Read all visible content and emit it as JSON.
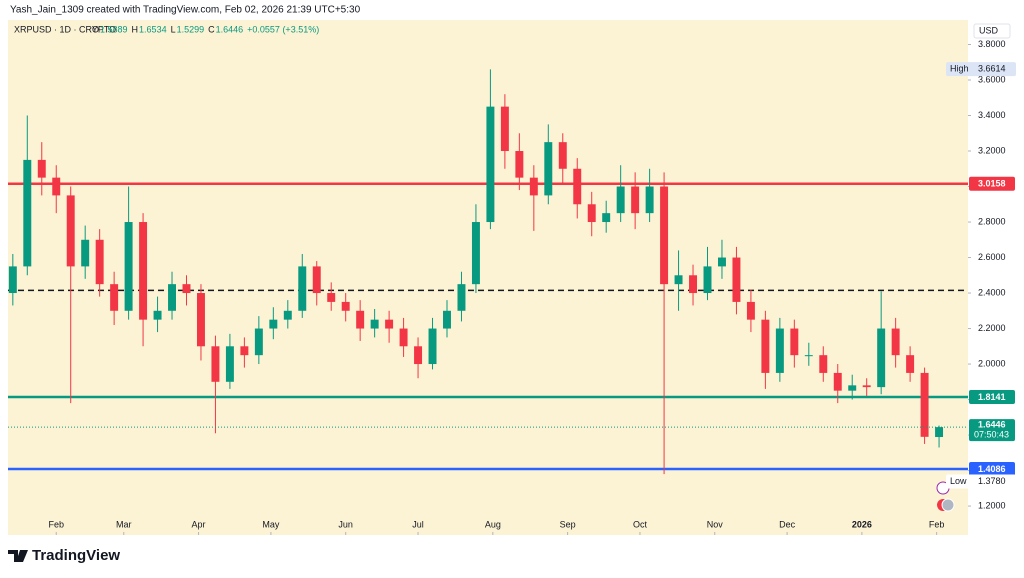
{
  "chart_data": {
    "type": "candlestick",
    "attribution": "Yash_Jain_1309 created with TradingView.com, Feb 02, 2026 21:39 UTC+5:30",
    "symbol": "XRPUSD · 1D · CRYPTO",
    "ohlc_labels": [
      "O",
      "H",
      "L",
      "C"
    ],
    "change": "+0.0557 (+3.51%)",
    "currency": "USD",
    "brand": "TradingView",
    "countdown": "07:50:43",
    "up_color": "#089981",
    "down_color": "#f23645",
    "background": "#fcf3d4",
    "x": [
      -18,
      -12,
      -6,
      0,
      6,
      12,
      18,
      24,
      30,
      36,
      42,
      48,
      54,
      60,
      66,
      72,
      78,
      84,
      90,
      96,
      102,
      108,
      114,
      120,
      126,
      132,
      138,
      144,
      150,
      156,
      162,
      168,
      174,
      180,
      186,
      192,
      198,
      204,
      210,
      216,
      222,
      228,
      234,
      240,
      246,
      252,
      258,
      264,
      270,
      276,
      282,
      288,
      294,
      300,
      306,
      312,
      318,
      324,
      330,
      336,
      342,
      348,
      354,
      360,
      366
    ],
    "open": [
      2.4,
      2.55,
      3.15,
      3.05,
      2.95,
      2.55,
      2.7,
      2.45,
      2.3,
      2.8,
      2.25,
      2.3,
      2.45,
      2.4,
      2.1,
      1.9,
      2.1,
      2.05,
      2.2,
      2.25,
      2.3,
      2.55,
      2.4,
      2.35,
      2.3,
      2.2,
      2.25,
      2.2,
      2.1,
      2.0,
      2.2,
      2.3,
      2.45,
      2.8,
      3.45,
      3.2,
      3.05,
      2.95,
      3.25,
      3.1,
      2.9,
      2.8,
      2.85,
      3.0,
      2.85,
      3.0,
      2.45,
      2.5,
      2.4,
      2.55,
      2.6,
      2.35,
      2.25,
      1.95,
      2.2,
      2.05,
      2.05,
      1.95,
      1.85,
      1.88,
      1.87,
      2.2,
      2.05,
      1.95,
      1.5889
    ],
    "high": [
      2.62,
      3.4,
      3.25,
      3.12,
      3.0,
      2.78,
      2.76,
      2.52,
      3.0,
      2.85,
      2.38,
      2.52,
      2.5,
      2.45,
      2.16,
      2.17,
      2.15,
      2.27,
      2.32,
      2.36,
      2.62,
      2.58,
      2.46,
      2.4,
      2.36,
      2.31,
      2.3,
      2.26,
      2.15,
      2.26,
      2.36,
      2.52,
      2.9,
      3.66,
      3.52,
      3.3,
      3.12,
      3.35,
      3.3,
      3.16,
      2.97,
      2.92,
      3.12,
      3.08,
      3.1,
      3.08,
      2.64,
      2.56,
      2.66,
      2.7,
      2.66,
      2.42,
      2.3,
      2.26,
      2.25,
      2.12,
      2.1,
      2.0,
      1.94,
      1.92,
      2.41,
      2.26,
      2.1,
      1.98,
      1.6534
    ],
    "low": [
      2.33,
      2.5,
      2.95,
      2.85,
      1.78,
      2.48,
      2.38,
      2.22,
      2.25,
      2.1,
      2.18,
      2.25,
      2.33,
      2.02,
      1.61,
      1.86,
      1.98,
      2.0,
      2.14,
      2.2,
      2.26,
      2.33,
      2.3,
      2.24,
      2.13,
      2.15,
      2.12,
      2.04,
      1.92,
      1.97,
      2.15,
      2.24,
      2.4,
      2.76,
      3.1,
      2.98,
      2.75,
      2.9,
      3.02,
      2.82,
      2.72,
      2.74,
      2.8,
      2.76,
      2.8,
      1.38,
      2.3,
      2.33,
      2.36,
      2.48,
      2.28,
      2.18,
      1.86,
      1.9,
      1.98,
      1.99,
      1.9,
      1.78,
      1.8,
      1.82,
      1.83,
      1.98,
      1.9,
      1.55,
      1.5299
    ],
    "close": [
      2.55,
      3.15,
      3.05,
      2.95,
      2.55,
      2.7,
      2.45,
      2.3,
      2.8,
      2.25,
      2.3,
      2.45,
      2.4,
      2.1,
      1.9,
      2.1,
      2.05,
      2.2,
      2.25,
      2.3,
      2.55,
      2.4,
      2.35,
      2.3,
      2.2,
      2.25,
      2.2,
      2.1,
      2.0,
      2.2,
      2.3,
      2.45,
      2.8,
      3.45,
      3.2,
      3.05,
      2.95,
      3.25,
      3.1,
      2.9,
      2.8,
      2.85,
      3.0,
      2.85,
      3.0,
      2.45,
      2.5,
      2.4,
      2.55,
      2.6,
      2.35,
      2.25,
      1.95,
      2.2,
      2.05,
      2.05,
      1.95,
      1.85,
      1.88,
      1.87,
      2.2,
      2.05,
      1.95,
      1.59,
      1.6446
    ],
    "xlim": [
      -20,
      378
    ],
    "xticks": [
      {
        "value": 0,
        "label": "Feb"
      },
      {
        "value": 28,
        "label": "Mar"
      },
      {
        "value": 59,
        "label": "Apr"
      },
      {
        "value": 89,
        "label": "May"
      },
      {
        "value": 120,
        "label": "Jun"
      },
      {
        "value": 150,
        "label": "Jul"
      },
      {
        "value": 181,
        "label": "Aug"
      },
      {
        "value": 212,
        "label": "Sep"
      },
      {
        "value": 242,
        "label": "Oct"
      },
      {
        "value": 273,
        "label": "Nov"
      },
      {
        "value": 303,
        "label": "Dec"
      },
      {
        "value": 334,
        "label": "2026"
      },
      {
        "value": 365,
        "label": "Feb"
      }
    ],
    "ylim": [
      1.037,
      3.938
    ],
    "yticks": [
      {
        "value": 1.2,
        "label": "1.2000"
      },
      {
        "value": 1.4,
        "label": "1.4000"
      },
      {
        "value": 1.6,
        "label": "1.6000"
      },
      {
        "value": 1.8,
        "label": "1.8000"
      },
      {
        "value": 2.0,
        "label": "2.0000"
      },
      {
        "value": 2.2,
        "label": "2.2000"
      },
      {
        "value": 2.4,
        "label": "2.4000"
      },
      {
        "value": 2.6,
        "label": "2.6000"
      },
      {
        "value": 2.8,
        "label": "2.8000"
      },
      {
        "value": 3.0,
        "label": "3.0000"
      },
      {
        "value": 3.2,
        "label": "3.2000"
      },
      {
        "value": 3.4,
        "label": "3.4000"
      },
      {
        "value": 3.6,
        "label": "3.6000"
      },
      {
        "value": 3.8,
        "label": "3.8000"
      }
    ],
    "grid": false,
    "hlines": [
      {
        "value": 3.0158,
        "color": "#f23645",
        "style": "solid",
        "tag": true
      },
      {
        "value": 2.415,
        "color": "#131722",
        "style": "dashed",
        "tag": false
      },
      {
        "value": 1.8141,
        "color": "#089981",
        "style": "solid",
        "tag": true
      },
      {
        "value": 1.4086,
        "color": "#2962ff",
        "style": "solid",
        "tag": true
      }
    ],
    "annotations": [
      {
        "text": "High",
        "value": 3.6614
      },
      {
        "text": "Low",
        "value": 1.378,
        "value_label": "1.3780"
      }
    ]
  }
}
